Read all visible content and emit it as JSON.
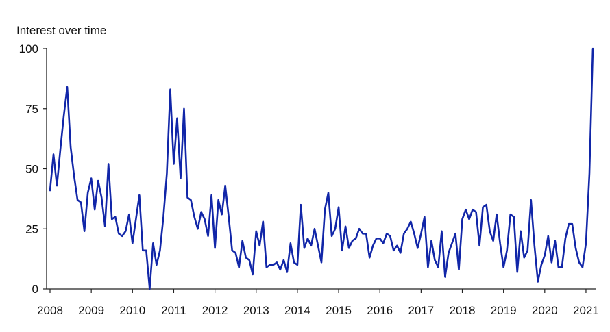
{
  "chart_data": {
    "type": "line",
    "title": "Interest over time",
    "xlabel": "",
    "ylabel": "",
    "ylim": [
      0,
      100
    ],
    "xlim": [
      2008.0,
      2021.25
    ],
    "y_ticks": [
      0,
      25,
      50,
      75,
      100
    ],
    "x_ticks": [
      2008,
      2009,
      2010,
      2011,
      2012,
      2013,
      2014,
      2015,
      2016,
      2017,
      2018,
      2019,
      2020,
      2021
    ],
    "colors": {
      "line": "#1126a8",
      "axis": "#222222"
    },
    "series": [
      {
        "name": "Interest over time",
        "start_year": 2008.0,
        "step": 0.0833333,
        "values": [
          41,
          56,
          43,
          58,
          72,
          84,
          59,
          47,
          37,
          36,
          24,
          40,
          46,
          33,
          45,
          38,
          26,
          52,
          29,
          30,
          23,
          22,
          24,
          31,
          19,
          29,
          39,
          16,
          16,
          0,
          19,
          10,
          16,
          30,
          48,
          83,
          52,
          71,
          46,
          75,
          38,
          37,
          30,
          25,
          32,
          29,
          22,
          39,
          17,
          37,
          31,
          43,
          30,
          16,
          15,
          9,
          20,
          13,
          12,
          6,
          24,
          18,
          28,
          9,
          10,
          10,
          11,
          8,
          12,
          7,
          19,
          11,
          10,
          35,
          17,
          21,
          18,
          25,
          18,
          11,
          33,
          40,
          22,
          25,
          34,
          16,
          26,
          17,
          20,
          21,
          25,
          23,
          23,
          13,
          18,
          21,
          21,
          19,
          23,
          22,
          16,
          18,
          15,
          23,
          25,
          28,
          23,
          17,
          23,
          30,
          9,
          20,
          12,
          9,
          24,
          5,
          15,
          19,
          23,
          8,
          29,
          33,
          29,
          33,
          32,
          18,
          34,
          35,
          24,
          20,
          31,
          19,
          9,
          16,
          31,
          30,
          7,
          24,
          13,
          16,
          37,
          18,
          3,
          10,
          14,
          22,
          11,
          20,
          9,
          9,
          21,
          27,
          27,
          17,
          11,
          9,
          19,
          48,
          100
        ]
      }
    ]
  }
}
